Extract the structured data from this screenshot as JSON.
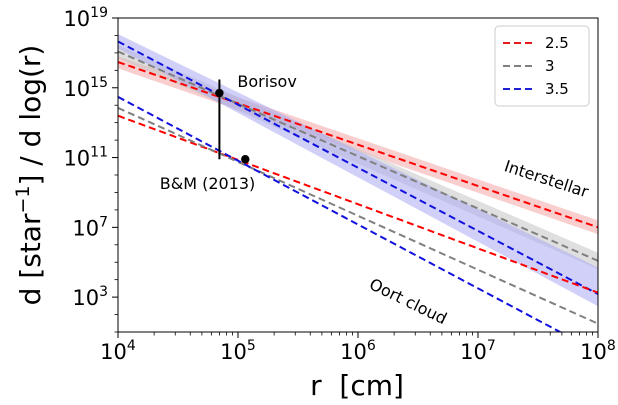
{
  "chart_data": {
    "type": "line",
    "xscale": "log",
    "yscale": "log",
    "xlim": [
      10000,
      100000000
    ],
    "ylim": [
      10,
      10000000000000000000
    ],
    "xlabel": "r  [cm]",
    "ylabel": "d [star^-1] / d log(r)",
    "xticks": [
      {
        "base": "10",
        "exp": "4",
        "value": 10000
      },
      {
        "base": "10",
        "exp": "5",
        "value": 100000
      },
      {
        "base": "10",
        "exp": "6",
        "value": 1000000
      },
      {
        "base": "10",
        "exp": "7",
        "value": 10000000
      },
      {
        "base": "10",
        "exp": "8",
        "value": 100000000
      }
    ],
    "yticks": [
      {
        "base": "10",
        "exp": "3",
        "value": 1000
      },
      {
        "base": "10",
        "exp": "7",
        "value": 10000000
      },
      {
        "base": "10",
        "exp": "11",
        "value": 100000000000
      },
      {
        "base": "10",
        "exp": "15",
        "value": 1000000000000000
      },
      {
        "base": "10",
        "exp": "19",
        "value": 10000000000000000000
      }
    ],
    "legend": {
      "position": "top-right",
      "entries": [
        {
          "label": "2.5",
          "color": "#e41a1c"
        },
        {
          "label": "3",
          "color": "#808080"
        },
        {
          "label": "3.5",
          "color": "#1f1fd6"
        }
      ]
    },
    "series": [
      {
        "name": "2.5",
        "group": "Interstellar",
        "color": "#ff0000",
        "band_color": "#f4a6a6",
        "x": [
          10000,
          100000000
        ],
        "y": [
          3e+16,
          10000000.0
        ],
        "band_low": [
          1.3e+16,
          4000000.0
        ],
        "band_high": [
          6.5e+16,
          25000000.0
        ]
      },
      {
        "name": "3",
        "group": "Interstellar",
        "color": "#808080",
        "band_color": "#c4c4c4",
        "x": [
          10000,
          100000000
        ],
        "y": [
          1.2e+17,
          120000.0
        ],
        "band_low": [
          5e+16,
          40000.0
        ],
        "band_high": [
          2.8e+17,
          350000.0
        ]
      },
      {
        "name": "3.5",
        "group": "Interstellar",
        "color": "#1111dd",
        "band_color": "#a9a9f2",
        "x": [
          10000,
          100000000
        ],
        "y": [
          4.5e+17,
          1500.0
        ],
        "band_low": [
          1.8e+17,
          300.0
        ],
        "band_high": [
          1.2e+18,
          50000.0
        ]
      },
      {
        "name": "2.5",
        "group": "Oort cloud",
        "color": "#ff0000",
        "x": [
          10000,
          100000000
        ],
        "y": [
          25000000000000.0,
          1800.0
        ]
      },
      {
        "name": "3",
        "group": "Oort cloud",
        "color": "#808080",
        "x": [
          10000,
          100000000
        ],
        "y": [
          70000000000000.0,
          30.0
        ]
      },
      {
        "name": "3.5",
        "group": "Oort cloud",
        "color": "#1111dd",
        "x": [
          10000,
          100000000
        ],
        "y": [
          300000000000000.0,
          0.7
        ]
      }
    ],
    "points": [
      {
        "label": "Borisov",
        "x": 70000,
        "y": 500000000000000.0,
        "err_low": 80000000000.0,
        "err_high": 3000000000000000.0
      },
      {
        "label": "B&M (2013)",
        "x": 115000,
        "y": 80000000000.0
      }
    ],
    "annotations": [
      {
        "text": "Interstellar",
        "x": 36000000.0,
        "y": 3000000000.0,
        "angle": 18
      },
      {
        "text": "Oort cloud",
        "x": 2500000.0,
        "y": 300.0,
        "angle": 26
      }
    ]
  }
}
